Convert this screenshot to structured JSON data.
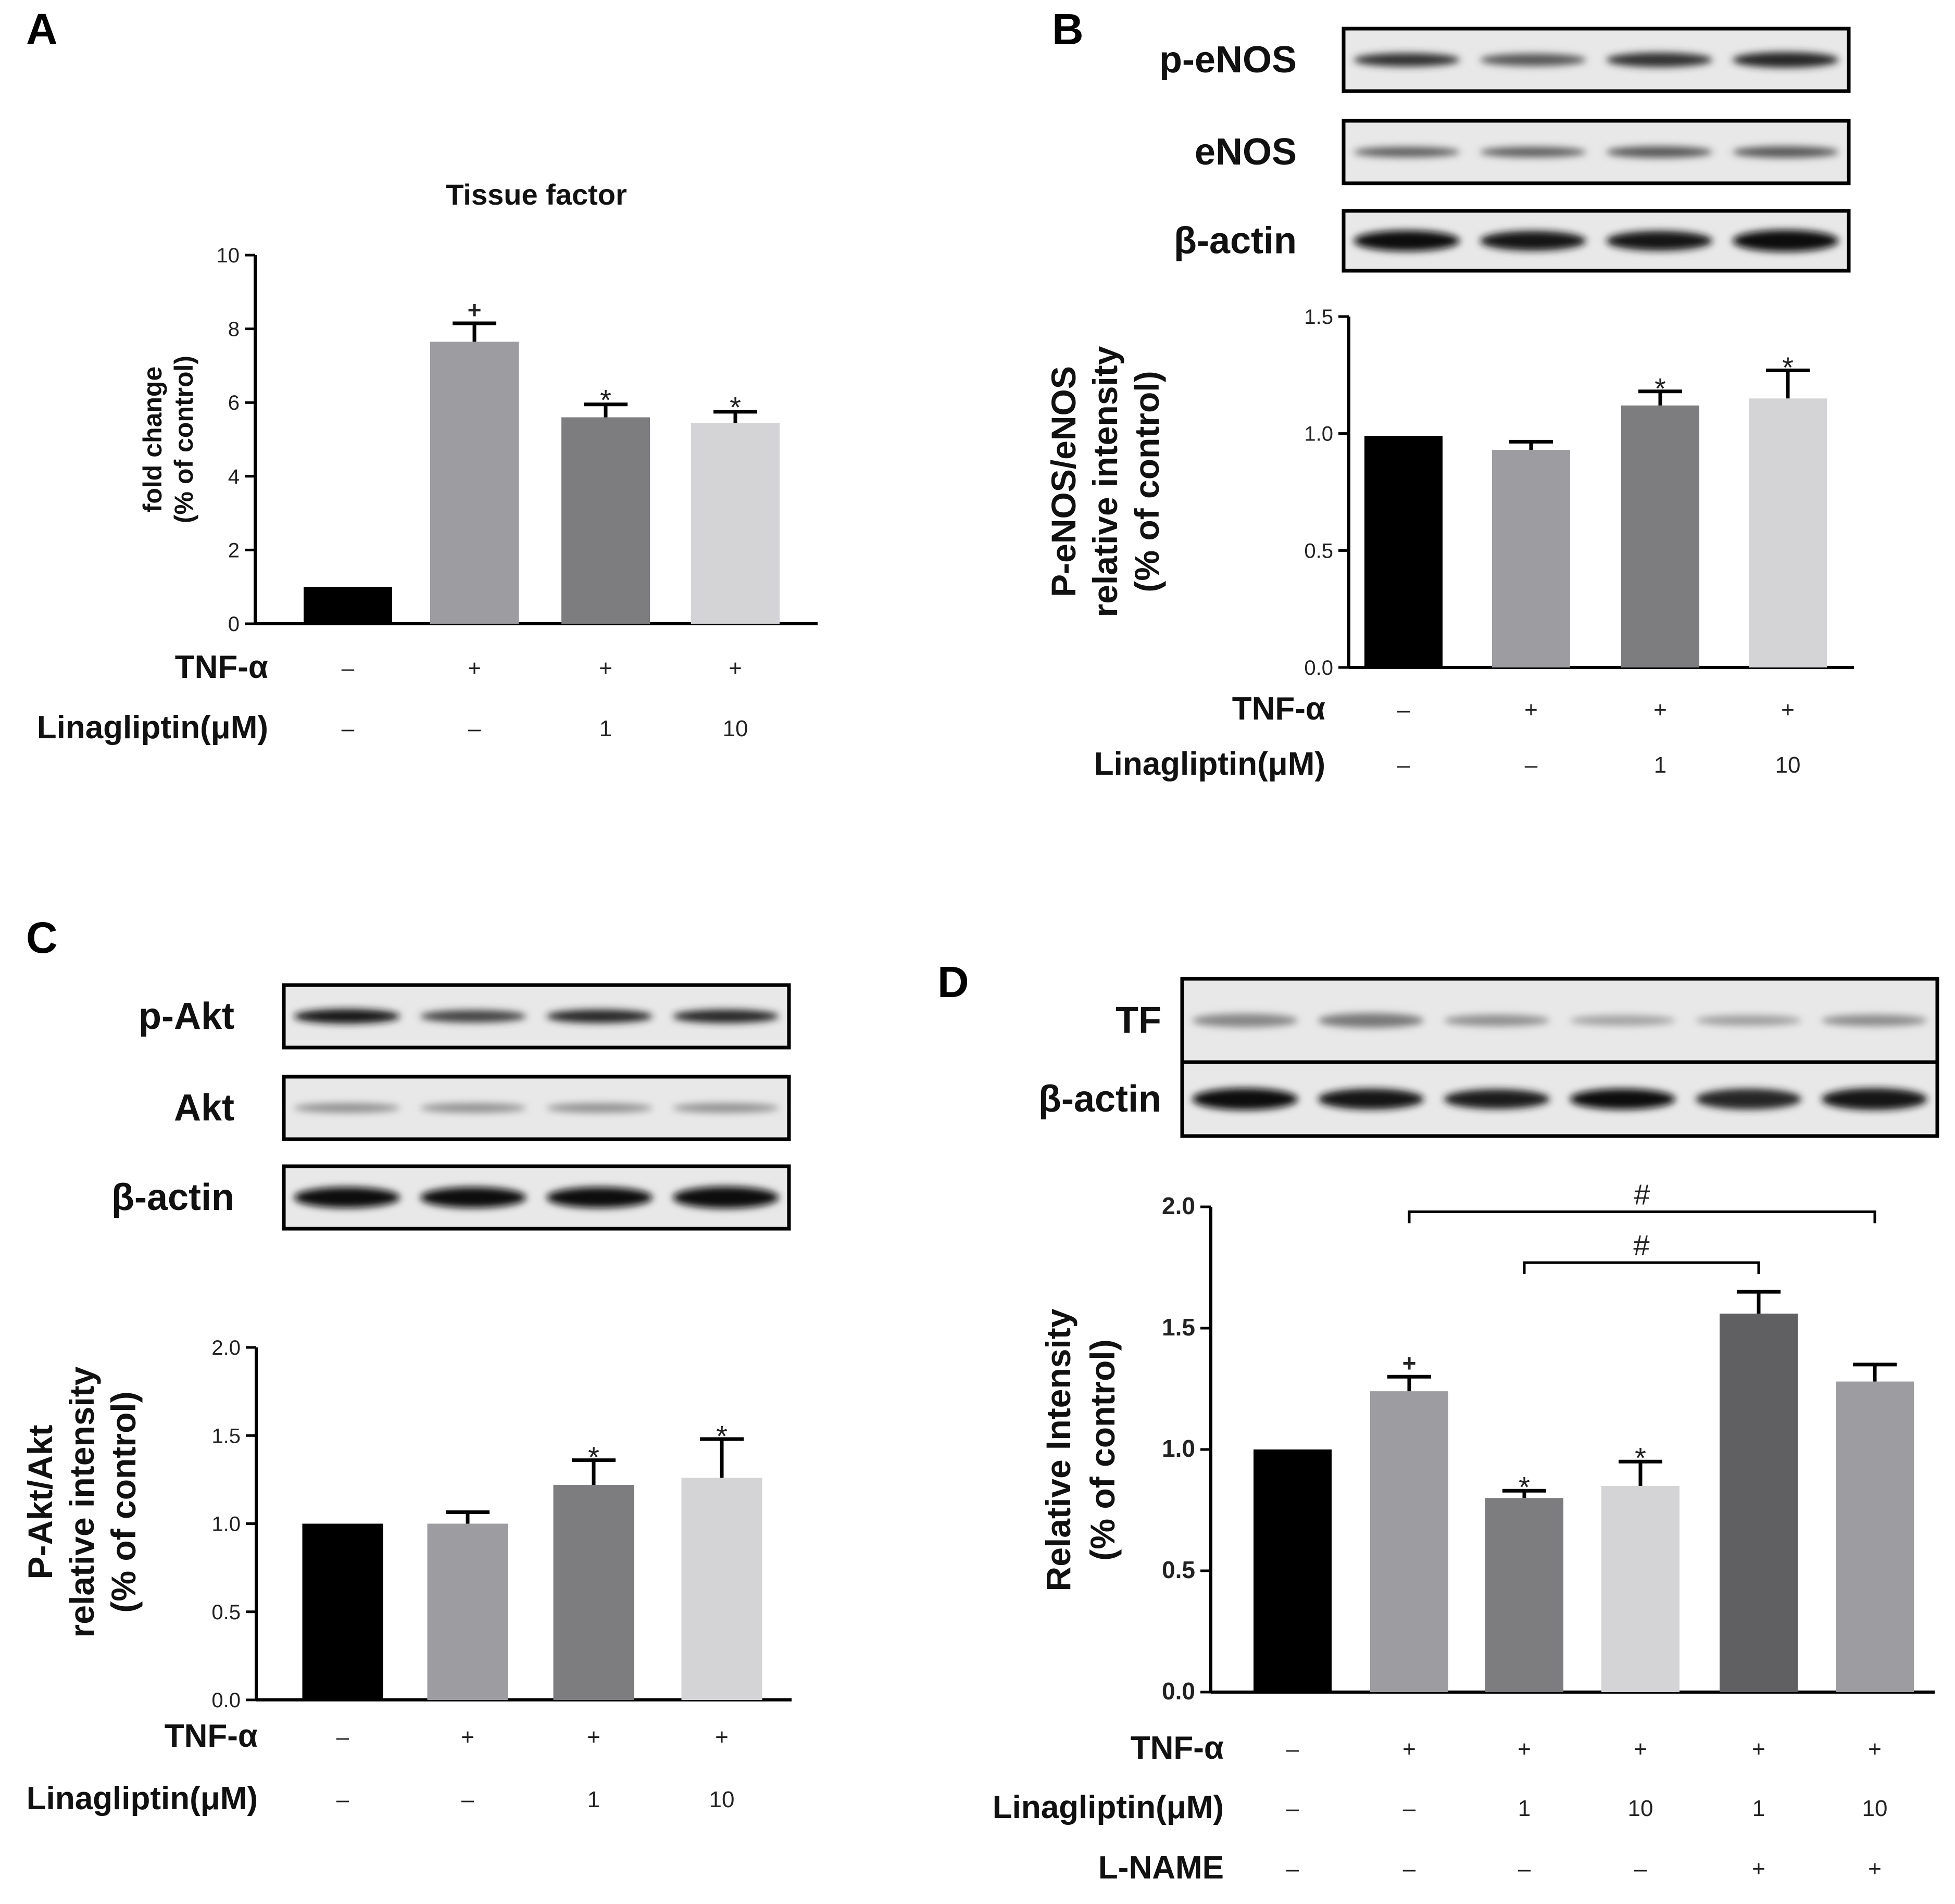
{
  "chart_data": [
    {
      "id": "A",
      "type": "bar",
      "panel_label": "A",
      "title": "Tissue factor",
      "ylabel": [
        "fold change",
        "(% of control)"
      ],
      "ylim": [
        0,
        10
      ],
      "yticks": [
        0,
        2,
        4,
        6,
        8,
        10
      ],
      "categories": [
        "1",
        "2",
        "3",
        "4"
      ],
      "values": [
        1.0,
        7.65,
        5.6,
        5.45
      ],
      "errors": [
        0,
        0.5,
        0.35,
        0.3
      ],
      "bar_colors": [
        "#000000",
        "#9d9ca1",
        "#7d7d80",
        "#d4d4d6"
      ],
      "markers": [
        "",
        "+",
        "*",
        "*"
      ],
      "conditions": [
        {
          "label": "TNF-α",
          "values": [
            "–",
            "+",
            "+",
            "+"
          ]
        },
        {
          "label": "Linagliptin(μM)",
          "values": [
            "–",
            "–",
            "1",
            "10"
          ]
        }
      ]
    },
    {
      "id": "B",
      "type": "bar",
      "panel_label": "B",
      "blot_rows": [
        "p-eNOS",
        "eNOS",
        "β-actin"
      ],
      "ylabel": [
        "P-eNOS/eNOS",
        "relative intensity",
        "(% of control)"
      ],
      "ylim": [
        0,
        1.5
      ],
      "yticks": [
        0.0,
        0.5,
        1.0,
        1.5
      ],
      "categories": [
        "1",
        "2",
        "3",
        "4"
      ],
      "values": [
        0.99,
        0.93,
        1.12,
        1.15
      ],
      "errors": [
        0,
        0.035,
        0.06,
        0.12
      ],
      "bar_colors": [
        "#000000",
        "#9d9ca1",
        "#7d7d80",
        "#d4d4d6"
      ],
      "markers": [
        "",
        "",
        "*",
        "*"
      ],
      "conditions": [
        {
          "label": "TNF-α",
          "values": [
            "–",
            "+",
            "+",
            "+"
          ]
        },
        {
          "label": "Linagliptin(μM)",
          "values": [
            "–",
            "–",
            "1",
            "10"
          ]
        }
      ]
    },
    {
      "id": "C",
      "type": "bar",
      "panel_label": "C",
      "blot_rows": [
        "p-Akt",
        "Akt",
        "β-actin"
      ],
      "ylabel": [
        "P-Akt/Akt",
        "relative intensity",
        "(% of control)"
      ],
      "ylim": [
        0,
        2.0
      ],
      "yticks": [
        0.0,
        0.5,
        1.0,
        1.5,
        2.0
      ],
      "categories": [
        "1",
        "2",
        "3",
        "4"
      ],
      "values": [
        1.0,
        1.0,
        1.22,
        1.26
      ],
      "errors": [
        0,
        0.065,
        0.14,
        0.22
      ],
      "bar_colors": [
        "#000000",
        "#9d9ca1",
        "#7d7d80",
        "#d4d4d6"
      ],
      "markers": [
        "",
        "",
        "*",
        "*"
      ],
      "conditions": [
        {
          "label": "TNF-α",
          "values": [
            "–",
            "+",
            "+",
            "+"
          ]
        },
        {
          "label": "Linagliptin(μM)",
          "values": [
            "–",
            "–",
            "1",
            "10"
          ]
        }
      ]
    },
    {
      "id": "D",
      "type": "bar",
      "panel_label": "D",
      "blot_rows": [
        "TF",
        "β-actin"
      ],
      "ylabel": [
        "Relative Intensity",
        "(% of control)"
      ],
      "ylim": [
        0,
        2.0
      ],
      "yticks": [
        0.0,
        0.5,
        1.0,
        1.5,
        2.0
      ],
      "categories": [
        "1",
        "2",
        "3",
        "4",
        "5",
        "6"
      ],
      "values": [
        1.0,
        1.24,
        0.8,
        0.85,
        1.56,
        1.28
      ],
      "errors": [
        0,
        0.06,
        0.03,
        0.1,
        0.09,
        0.07
      ],
      "bar_colors": [
        "#000000",
        "#9d9ca1",
        "#7d7d80",
        "#d4d4d6",
        "#606062",
        "#9d9ca1"
      ],
      "markers": [
        "",
        "+",
        "*",
        "*",
        "",
        ""
      ],
      "brackets": [
        {
          "from": 2,
          "to": 4,
          "y": 1.77,
          "label": "#"
        },
        {
          "from": 1,
          "to": 5,
          "y": 1.98,
          "label": "#"
        }
      ],
      "conditions": [
        {
          "label": "TNF-α",
          "values": [
            "–",
            "+",
            "+",
            "+",
            "+",
            "+"
          ]
        },
        {
          "label": "Linagliptin(μM)",
          "values": [
            "–",
            "–",
            "1",
            "10",
            "1",
            "10"
          ]
        },
        {
          "label": "L-NAME",
          "values": [
            "–",
            "–",
            "–",
            "–",
            "+",
            "+"
          ]
        }
      ]
    }
  ]
}
